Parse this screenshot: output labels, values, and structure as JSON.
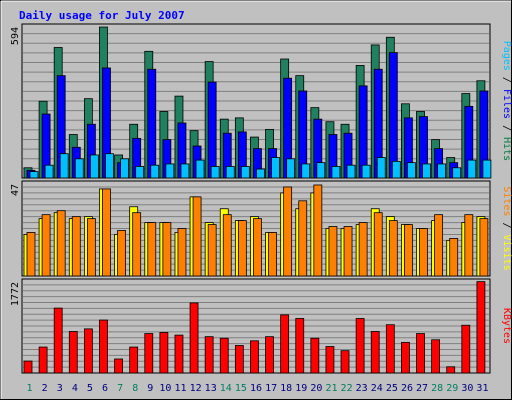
{
  "chart_data": {
    "type": "bar",
    "title": "Daily usage for July 2007",
    "x": [
      "1",
      "2",
      "3",
      "4",
      "5",
      "6",
      "7",
      "8",
      "9",
      "10",
      "11",
      "12",
      "13",
      "14",
      "15",
      "16",
      "17",
      "18",
      "19",
      "20",
      "21",
      "22",
      "23",
      "24",
      "25",
      "26",
      "27",
      "28",
      "29",
      "30",
      "31"
    ],
    "weekend_days": [
      "1",
      "7",
      "8",
      "14",
      "15",
      "21",
      "22",
      "28",
      "29"
    ],
    "panels": [
      {
        "ymax_label": "594",
        "ymax": 594,
        "legend": [
          {
            "text": "Pages",
            "color": "#00c0ff"
          },
          {
            "text": " / ",
            "color": "#000000"
          },
          {
            "text": "Files",
            "color": "#0000ff"
          },
          {
            "text": " / ",
            "color": "#000000"
          },
          {
            "text": "Hits",
            "color": "#008040"
          }
        ],
        "series": [
          {
            "name": "Hits",
            "color": "#208060",
            "values": [
              40,
              300,
              510,
              170,
              310,
              590,
              90,
              210,
              495,
              260,
              320,
              185,
              455,
              230,
              235,
              160,
              190,
              465,
              400,
              275,
              220,
              210,
              440,
              520,
              550,
              290,
              260,
              150,
              80,
              330,
              380
            ]
          },
          {
            "name": "Files",
            "color": "#0000ff",
            "values": [
              30,
              250,
              400,
              120,
              210,
              430,
              60,
              155,
              425,
              150,
              215,
              125,
              375,
              175,
              180,
              115,
              115,
              390,
              340,
              230,
              170,
              175,
              360,
              425,
              490,
              235,
              240,
              115,
              60,
              280,
              340
            ]
          },
          {
            "name": "Pages",
            "color": "#00c0ff",
            "values": [
              25,
              50,
              95,
              75,
              90,
              95,
              75,
              45,
              50,
              55,
              55,
              70,
              45,
              45,
              45,
              35,
              80,
              75,
              55,
              60,
              45,
              50,
              50,
              80,
              65,
              60,
              55,
              55,
              40,
              70,
              70
            ]
          }
        ]
      },
      {
        "ymax_label": "47",
        "ymax": 47,
        "legend": [
          {
            "text": "Sites",
            "color": "#ff8000"
          },
          {
            "text": " / ",
            "color": "#000000"
          },
          {
            "text": "Visits",
            "color": "#ffff00"
          }
        ],
        "series": [
          {
            "name": "Visits",
            "color": "#ffff00",
            "values": [
              21,
              29,
              32,
              29,
              30,
              44,
              21,
              35,
              27,
              27,
              22,
              40,
              27,
              34,
              28,
              30,
              22,
              42,
              34,
              42,
              24,
              24,
              26,
              34,
              30,
              26,
              24,
              28,
              18,
              27,
              30
            ]
          },
          {
            "name": "Sites",
            "color": "#ff8000",
            "values": [
              22,
              31,
              33,
              30,
              29,
              44,
              23,
              32,
              27,
              27,
              24,
              40,
              26,
              31,
              28,
              29,
              22,
              45,
              38,
              46,
              25,
              25,
              27,
              32,
              28,
              26,
              24,
              31,
              19,
              31,
              29
            ]
          }
        ]
      },
      {
        "ymax_label": "1772",
        "ymax": 1772,
        "legend": [
          {
            "text": "KBytes",
            "color": "#ff0000"
          }
        ],
        "series": [
          {
            "name": "KBytes",
            "color": "#ff0000",
            "values": [
              230,
              500,
              1250,
              800,
              850,
              1020,
              270,
              500,
              760,
              780,
              730,
              1350,
              700,
              670,
              530,
              620,
              700,
              1120,
              1050,
              670,
              510,
              430,
              1050,
              800,
              930,
              590,
              760,
              640,
              120,
              920,
              1760
            ]
          }
        ]
      }
    ]
  }
}
